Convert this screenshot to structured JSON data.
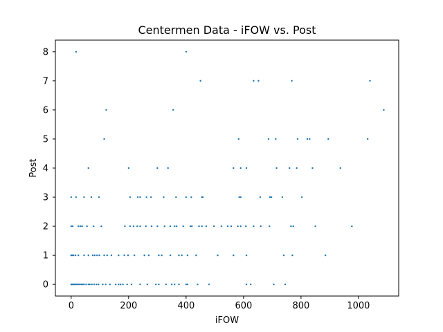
{
  "chart_data": {
    "type": "scatter",
    "title": "Centermen Data - iFOW vs. Post",
    "xlabel": "iFOW",
    "ylabel": "Post",
    "xlim": [
      -55,
      1140
    ],
    "ylim": [
      -0.4,
      8.4
    ],
    "xticks": [
      0,
      200,
      400,
      600,
      800,
      1000
    ],
    "yticks": [
      0,
      1,
      2,
      3,
      4,
      5,
      6,
      7,
      8
    ],
    "grid": false,
    "marker_color": "#1f77b4",
    "points": [
      {
        "x": 17,
        "y": 8
      },
      {
        "x": 400,
        "y": 8
      },
      {
        "x": 450,
        "y": 7
      },
      {
        "x": 635,
        "y": 7
      },
      {
        "x": 652,
        "y": 7
      },
      {
        "x": 768,
        "y": 7
      },
      {
        "x": 1040,
        "y": 7
      },
      {
        "x": 122,
        "y": 6
      },
      {
        "x": 355,
        "y": 6
      },
      {
        "x": 1088,
        "y": 6
      },
      {
        "x": 115,
        "y": 5
      },
      {
        "x": 583,
        "y": 5
      },
      {
        "x": 687,
        "y": 5
      },
      {
        "x": 712,
        "y": 5
      },
      {
        "x": 788,
        "y": 5
      },
      {
        "x": 822,
        "y": 5
      },
      {
        "x": 830,
        "y": 5
      },
      {
        "x": 895,
        "y": 5
      },
      {
        "x": 1032,
        "y": 5
      },
      {
        "x": 60,
        "y": 4
      },
      {
        "x": 200,
        "y": 4
      },
      {
        "x": 300,
        "y": 4
      },
      {
        "x": 337,
        "y": 4
      },
      {
        "x": 565,
        "y": 4
      },
      {
        "x": 590,
        "y": 4
      },
      {
        "x": 610,
        "y": 4
      },
      {
        "x": 715,
        "y": 4
      },
      {
        "x": 760,
        "y": 4
      },
      {
        "x": 785,
        "y": 4
      },
      {
        "x": 840,
        "y": 4
      },
      {
        "x": 937,
        "y": 4
      },
      {
        "x": 0,
        "y": 3
      },
      {
        "x": 17,
        "y": 3
      },
      {
        "x": 45,
        "y": 3
      },
      {
        "x": 70,
        "y": 3
      },
      {
        "x": 97,
        "y": 3
      },
      {
        "x": 205,
        "y": 3
      },
      {
        "x": 232,
        "y": 3
      },
      {
        "x": 240,
        "y": 3
      },
      {
        "x": 262,
        "y": 3
      },
      {
        "x": 278,
        "y": 3
      },
      {
        "x": 322,
        "y": 3
      },
      {
        "x": 365,
        "y": 3
      },
      {
        "x": 400,
        "y": 3
      },
      {
        "x": 418,
        "y": 3
      },
      {
        "x": 455,
        "y": 3
      },
      {
        "x": 458,
        "y": 3
      },
      {
        "x": 585,
        "y": 3
      },
      {
        "x": 590,
        "y": 3
      },
      {
        "x": 658,
        "y": 3
      },
      {
        "x": 692,
        "y": 3
      },
      {
        "x": 697,
        "y": 3
      },
      {
        "x": 735,
        "y": 3
      },
      {
        "x": 803,
        "y": 3
      },
      {
        "x": 0,
        "y": 2
      },
      {
        "x": 5,
        "y": 2
      },
      {
        "x": 25,
        "y": 2
      },
      {
        "x": 32,
        "y": 2
      },
      {
        "x": 38,
        "y": 2
      },
      {
        "x": 55,
        "y": 2
      },
      {
        "x": 78,
        "y": 2
      },
      {
        "x": 105,
        "y": 2
      },
      {
        "x": 187,
        "y": 2
      },
      {
        "x": 205,
        "y": 2
      },
      {
        "x": 217,
        "y": 2
      },
      {
        "x": 230,
        "y": 2
      },
      {
        "x": 240,
        "y": 2
      },
      {
        "x": 260,
        "y": 2
      },
      {
        "x": 280,
        "y": 2
      },
      {
        "x": 300,
        "y": 2
      },
      {
        "x": 325,
        "y": 2
      },
      {
        "x": 345,
        "y": 2
      },
      {
        "x": 360,
        "y": 2
      },
      {
        "x": 367,
        "y": 2
      },
      {
        "x": 390,
        "y": 2
      },
      {
        "x": 415,
        "y": 2
      },
      {
        "x": 420,
        "y": 2
      },
      {
        "x": 445,
        "y": 2
      },
      {
        "x": 455,
        "y": 2
      },
      {
        "x": 470,
        "y": 2
      },
      {
        "x": 497,
        "y": 2
      },
      {
        "x": 523,
        "y": 2
      },
      {
        "x": 545,
        "y": 2
      },
      {
        "x": 557,
        "y": 2
      },
      {
        "x": 580,
        "y": 2
      },
      {
        "x": 590,
        "y": 2
      },
      {
        "x": 608,
        "y": 2
      },
      {
        "x": 635,
        "y": 2
      },
      {
        "x": 660,
        "y": 2
      },
      {
        "x": 690,
        "y": 2
      },
      {
        "x": 765,
        "y": 2
      },
      {
        "x": 773,
        "y": 2
      },
      {
        "x": 850,
        "y": 2
      },
      {
        "x": 977,
        "y": 2
      },
      {
        "x": 0,
        "y": 1
      },
      {
        "x": 3,
        "y": 1
      },
      {
        "x": 8,
        "y": 1
      },
      {
        "x": 15,
        "y": 1
      },
      {
        "x": 25,
        "y": 1
      },
      {
        "x": 45,
        "y": 1
      },
      {
        "x": 60,
        "y": 1
      },
      {
        "x": 75,
        "y": 1
      },
      {
        "x": 82,
        "y": 1
      },
      {
        "x": 90,
        "y": 1
      },
      {
        "x": 98,
        "y": 1
      },
      {
        "x": 115,
        "y": 1
      },
      {
        "x": 125,
        "y": 1
      },
      {
        "x": 140,
        "y": 1
      },
      {
        "x": 165,
        "y": 1
      },
      {
        "x": 185,
        "y": 1
      },
      {
        "x": 198,
        "y": 1
      },
      {
        "x": 220,
        "y": 1
      },
      {
        "x": 255,
        "y": 1
      },
      {
        "x": 270,
        "y": 1
      },
      {
        "x": 305,
        "y": 1
      },
      {
        "x": 315,
        "y": 1
      },
      {
        "x": 345,
        "y": 1
      },
      {
        "x": 375,
        "y": 1
      },
      {
        "x": 385,
        "y": 1
      },
      {
        "x": 405,
        "y": 1
      },
      {
        "x": 435,
        "y": 1
      },
      {
        "x": 510,
        "y": 1
      },
      {
        "x": 565,
        "y": 1
      },
      {
        "x": 610,
        "y": 1
      },
      {
        "x": 740,
        "y": 1
      },
      {
        "x": 770,
        "y": 1
      },
      {
        "x": 885,
        "y": 1
      },
      {
        "x": 0,
        "y": 0
      },
      {
        "x": 2,
        "y": 0
      },
      {
        "x": 5,
        "y": 0
      },
      {
        "x": 8,
        "y": 0
      },
      {
        "x": 12,
        "y": 0
      },
      {
        "x": 16,
        "y": 0
      },
      {
        "x": 20,
        "y": 0
      },
      {
        "x": 25,
        "y": 0
      },
      {
        "x": 30,
        "y": 0
      },
      {
        "x": 35,
        "y": 0
      },
      {
        "x": 40,
        "y": 0
      },
      {
        "x": 45,
        "y": 0
      },
      {
        "x": 52,
        "y": 0
      },
      {
        "x": 60,
        "y": 0
      },
      {
        "x": 65,
        "y": 0
      },
      {
        "x": 72,
        "y": 0
      },
      {
        "x": 80,
        "y": 0
      },
      {
        "x": 88,
        "y": 0
      },
      {
        "x": 95,
        "y": 0
      },
      {
        "x": 110,
        "y": 0
      },
      {
        "x": 120,
        "y": 0
      },
      {
        "x": 135,
        "y": 0
      },
      {
        "x": 155,
        "y": 0
      },
      {
        "x": 165,
        "y": 0
      },
      {
        "x": 172,
        "y": 0
      },
      {
        "x": 180,
        "y": 0
      },
      {
        "x": 195,
        "y": 0
      },
      {
        "x": 210,
        "y": 0
      },
      {
        "x": 240,
        "y": 0
      },
      {
        "x": 265,
        "y": 0
      },
      {
        "x": 295,
        "y": 0
      },
      {
        "x": 305,
        "y": 0
      },
      {
        "x": 330,
        "y": 0
      },
      {
        "x": 350,
        "y": 0
      },
      {
        "x": 360,
        "y": 0
      },
      {
        "x": 375,
        "y": 0
      },
      {
        "x": 400,
        "y": 0
      },
      {
        "x": 405,
        "y": 0
      },
      {
        "x": 440,
        "y": 0
      },
      {
        "x": 480,
        "y": 0
      },
      {
        "x": 610,
        "y": 0
      },
      {
        "x": 625,
        "y": 0
      },
      {
        "x": 705,
        "y": 0
      },
      {
        "x": 745,
        "y": 0
      }
    ]
  }
}
